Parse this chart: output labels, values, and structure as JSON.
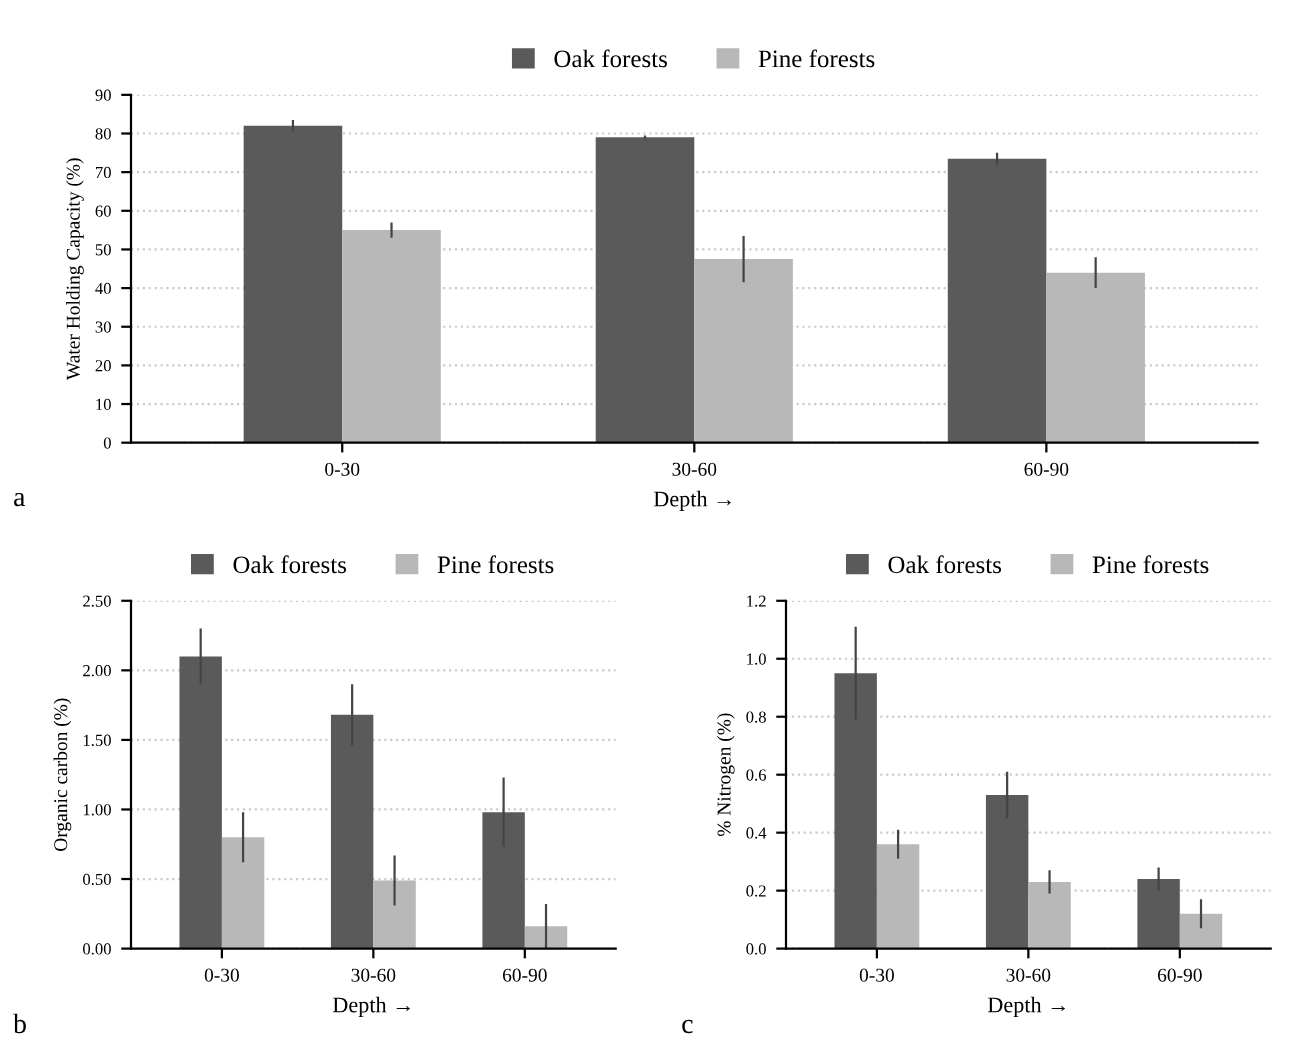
{
  "chart_data": [
    {
      "type": "bar",
      "categories": [
        "0-30",
        "30-60",
        "60-90"
      ],
      "xlabel": "Depth →",
      "ylabel": "Water Holding Capacity (%)",
      "ylim": [
        0,
        90
      ],
      "yticks": [
        0,
        10,
        20,
        30,
        40,
        50,
        60,
        70,
        80,
        90
      ],
      "grid": "y",
      "legend": "top",
      "annotations": [
        "a"
      ],
      "series": [
        {
          "name": "Oak forests",
          "color": "#5a5a5a",
          "values": [
            82,
            79,
            73.5
          ],
          "errors": [
            1.5,
            0.5,
            1.5
          ]
        },
        {
          "name": "Pine forests",
          "color": "#b8b8b8",
          "values": [
            55,
            47.5,
            44
          ],
          "errors": [
            2,
            6,
            4
          ]
        }
      ]
    },
    {
      "type": "bar",
      "categories": [
        "0-30",
        "30-60",
        "60-90"
      ],
      "xlabel": "Depth →",
      "ylabel": "Organic carbon (%)",
      "ylim": [
        0,
        2.5
      ],
      "yticks": [
        {
          "value": 0,
          "label": "0.00"
        },
        {
          "value": 0.5,
          "label": "0.50"
        },
        {
          "value": 1,
          "label": "1.00"
        },
        {
          "value": 1.5,
          "label": "1.50"
        },
        {
          "value": 2,
          "label": "2.00"
        },
        {
          "value": 2.5,
          "label": "2.50"
        }
      ],
      "grid": "y",
      "legend": "top",
      "annotations": [
        "b"
      ],
      "series": [
        {
          "name": "Oak forests",
          "color": "#5a5a5a",
          "values": [
            2.1,
            1.68,
            0.98
          ],
          "errors": [
            0.2,
            0.22,
            0.25
          ]
        },
        {
          "name": "Pine forests",
          "color": "#b8b8b8",
          "values": [
            0.8,
            0.49,
            0.16
          ],
          "errors": [
            0.18,
            0.18,
            0.16
          ]
        }
      ]
    },
    {
      "type": "bar",
      "categories": [
        "0-30",
        "30-60",
        "60-90"
      ],
      "xlabel": "Depth →",
      "ylabel": "% Nitrogen (%)",
      "ylim": [
        0,
        1.2
      ],
      "yticks": [
        {
          "value": 0,
          "label": "0.0"
        },
        {
          "value": 0.2,
          "label": "0.2"
        },
        {
          "value": 0.4,
          "label": "0.4"
        },
        {
          "value": 0.6,
          "label": "0.6"
        },
        {
          "value": 0.8,
          "label": "0.8"
        },
        {
          "value": 1.0,
          "label": "1.0"
        },
        {
          "value": 1.2,
          "label": "1.2"
        }
      ],
      "grid": "y",
      "legend": "top",
      "annotations": [
        "c"
      ],
      "series": [
        {
          "name": "Oak forests",
          "color": "#5a5a5a",
          "values": [
            0.95,
            0.53,
            0.24
          ],
          "errors": [
            0.16,
            0.08,
            0.04
          ]
        },
        {
          "name": "Pine forests",
          "color": "#b8b8b8",
          "values": [
            0.36,
            0.23,
            0.12
          ],
          "errors": [
            0.05,
            0.04,
            0.05
          ]
        }
      ]
    }
  ]
}
